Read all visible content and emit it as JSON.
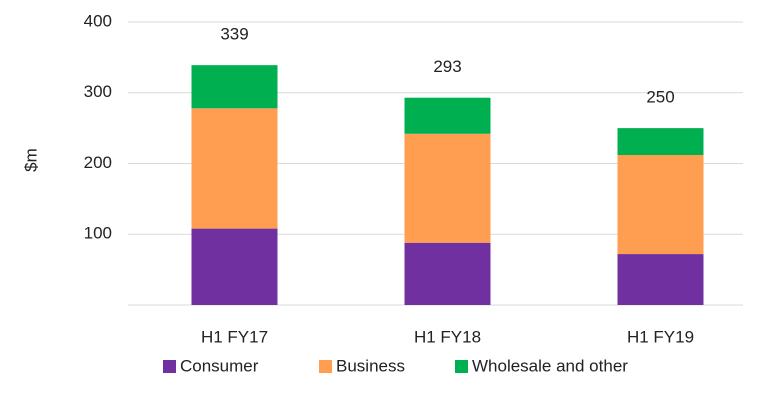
{
  "chart_data": {
    "type": "stacked_bar",
    "ylabel": "$m",
    "categories": [
      "H1 FY17",
      "H1 FY18",
      "H1 FY19"
    ],
    "series": [
      {
        "name": "Consumer",
        "color": "#7030a0",
        "values": [
          108,
          88,
          72
        ]
      },
      {
        "name": "Business",
        "color": "#ff9e50",
        "values": [
          170,
          154,
          140
        ]
      },
      {
        "name": "Wholesale and other",
        "color": "#00b050",
        "values": [
          61,
          51,
          38
        ]
      }
    ],
    "totals": [
      339,
      293,
      250
    ],
    "ylim": [
      0,
      400
    ],
    "yticks": [
      100,
      200,
      300,
      400
    ],
    "grid": true,
    "legend": "bottom"
  }
}
